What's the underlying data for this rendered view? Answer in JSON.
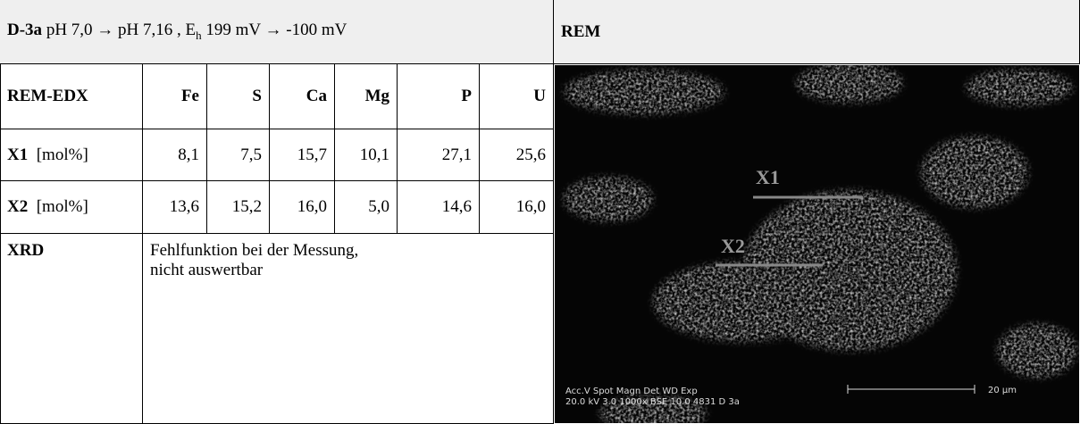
{
  "header": {
    "id": "D-3a",
    "text_1": "pH 7,0 → pH 7,16 , E",
    "subscript": "h",
    "text_2": " 199 mV → -100 mV",
    "rem_title": "REM"
  },
  "table": {
    "columns": [
      "REM-EDX",
      "Fe",
      "S",
      "Ca",
      "Mg",
      "P",
      "U"
    ],
    "rows": [
      {
        "label": "X1",
        "unit": "[mol%]",
        "values": [
          "8,1",
          "7,5",
          "15,7",
          "10,1",
          "27,1",
          "25,6"
        ]
      },
      {
        "label": "X2",
        "unit": "[mol%]",
        "values": [
          "13,6",
          "15,2",
          "16,0",
          "5,0",
          "14,6",
          "16,0"
        ]
      }
    ],
    "xrd": {
      "label": "XRD",
      "text_1": "Fehlfunktion bei der Messung,",
      "text_2": "nicht auswertbar"
    }
  },
  "image": {
    "marker_1": "X1",
    "marker_2": "X2",
    "info_line_1": "Acc.V  Spot Magn    Det  WD  Exp",
    "info_line_2": "20.0 kV 3.0  1000x   BSE 10.0 4831   D 3a",
    "scale": "20 µm"
  }
}
